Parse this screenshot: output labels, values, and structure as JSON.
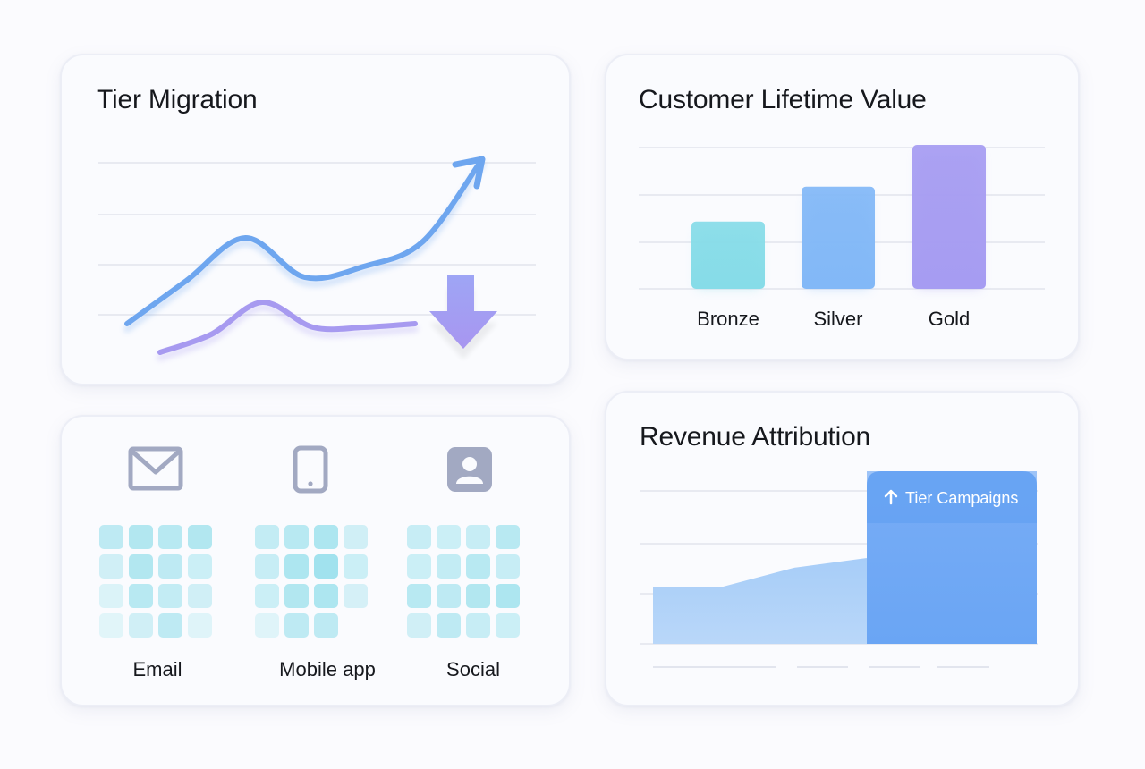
{
  "tier_migration": {
    "title": "Tier Migration",
    "series": [
      {
        "trend": "up",
        "color": "#6ea6ef"
      },
      {
        "trend": "down",
        "color": "#a79af0"
      }
    ],
    "icons": [
      "arrow-up-right-icon",
      "arrow-down-icon"
    ]
  },
  "lifetime_value": {
    "title": "Customer Lifetime Value"
  },
  "channels": {
    "items": [
      {
        "label": "Email",
        "icon": "mail-icon"
      },
      {
        "label": "Mobile app",
        "icon": "mobile-phone-icon"
      },
      {
        "label": "Social",
        "icon": "user-profile-icon"
      }
    ]
  },
  "revenue_attribution": {
    "title": "Revenue Attribution",
    "highlight_label": "Tier Campaigns",
    "highlight_icon": "arrow-up-icon"
  },
  "colors": {
    "blue": "#7fb3f5",
    "purple": "#a69cf2",
    "teal": "#86dce8",
    "icon_gray": "#a2a9c2"
  },
  "chart_data": [
    {
      "type": "line",
      "title": "Tier Migration",
      "x": [
        0,
        1,
        2,
        3,
        4,
        5,
        6
      ],
      "series": [
        {
          "values": [
            1.0,
            2.2,
            3.4,
            2.3,
            2.6,
            3.3,
            5.6
          ]
        },
        {
          "values": [
            0.2,
            0.7,
            1.6,
            0.9,
            0.9,
            1.0,
            0.5
          ]
        }
      ],
      "ylim": [
        0,
        6
      ],
      "grid": true
    },
    {
      "type": "bar",
      "title": "Customer Lifetime Value",
      "categories": [
        "Bronze",
        "Silver",
        "Gold"
      ],
      "values": [
        1.45,
        2.2,
        3.1
      ],
      "colors": [
        "#86dce8",
        "#82b8f7",
        "#a69cf2"
      ],
      "ylim": [
        0,
        3.1
      ],
      "grid": true
    },
    {
      "type": "heatmap",
      "categories": [
        "Email",
        "Mobile app",
        "Social"
      ],
      "rows": 4,
      "cols": 4,
      "values": [
        [
          [
            0.55,
            0.65,
            0.6,
            0.65
          ],
          [
            0.35,
            0.65,
            0.55,
            0.4
          ],
          [
            0.2,
            0.6,
            0.5,
            0.35
          ],
          [
            0.12,
            0.35,
            0.55,
            0.15
          ]
        ],
        [
          [
            0.5,
            0.6,
            0.7,
            0.35
          ],
          [
            0.45,
            0.7,
            0.8,
            0.4
          ],
          [
            0.4,
            0.65,
            0.7,
            0.3
          ],
          [
            0.15,
            0.55,
            0.55,
            0.0
          ]
        ],
        [
          [
            0.45,
            0.4,
            0.45,
            0.6
          ],
          [
            0.4,
            0.5,
            0.6,
            0.45
          ],
          [
            0.6,
            0.55,
            0.65,
            0.7
          ],
          [
            0.35,
            0.55,
            0.45,
            0.4
          ]
        ]
      ]
    },
    {
      "type": "area",
      "title": "Revenue Attribution",
      "x": [
        0,
        1,
        2,
        3,
        4
      ],
      "values": [
        1.2,
        1.2,
        1.6,
        1.8,
        3.0
      ],
      "highlight_from": 3.55,
      "ylim": [
        0,
        3.4
      ],
      "grid": true
    }
  ]
}
